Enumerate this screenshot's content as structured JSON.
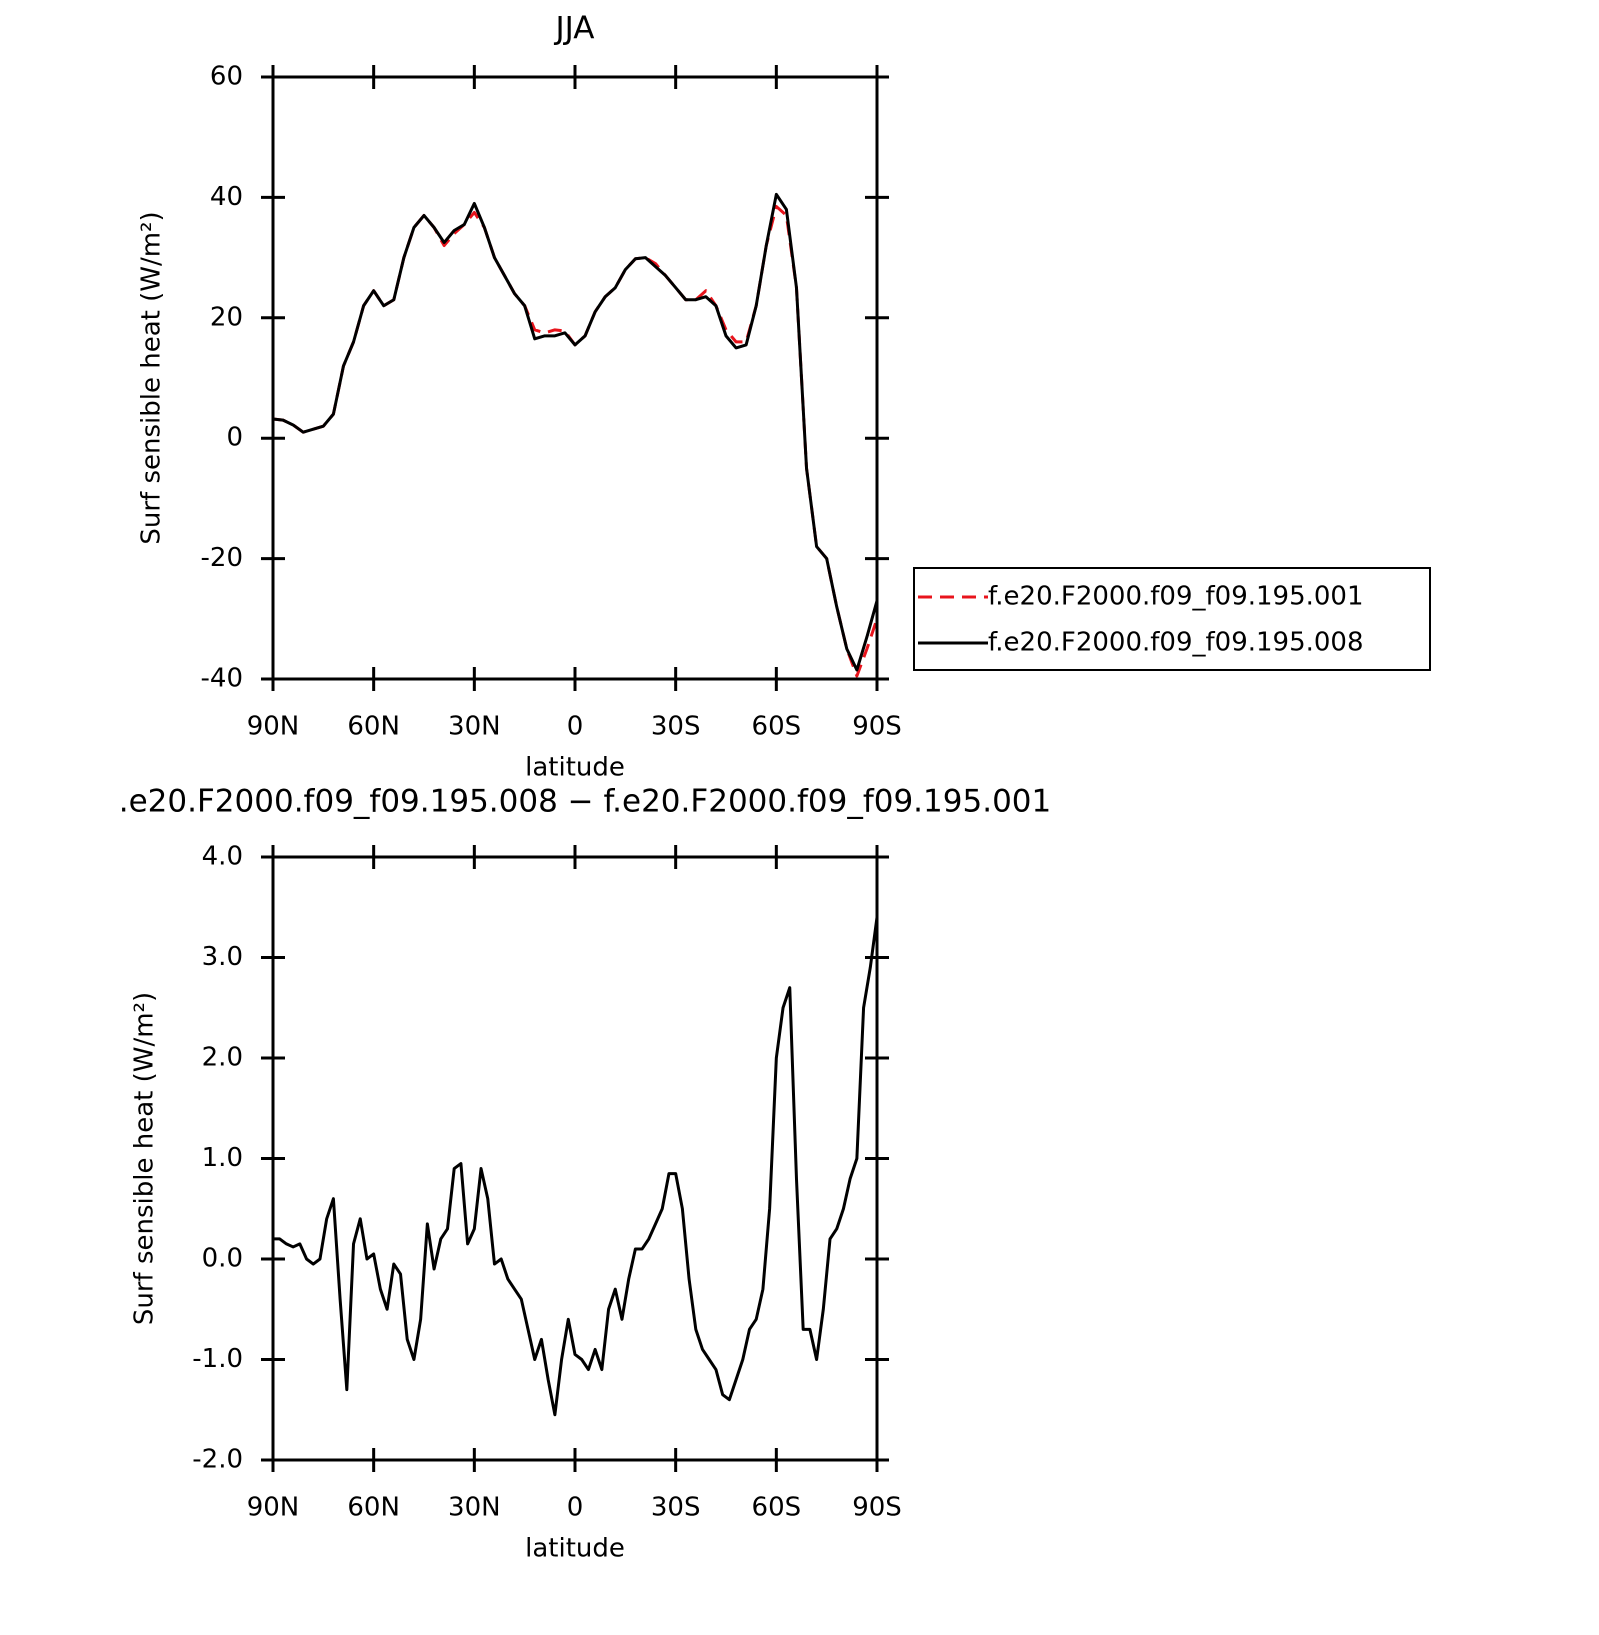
{
  "chart_data": [
    {
      "type": "line",
      "title": "JJA",
      "xlabel": "latitude",
      "ylabel": "Surf sensible heat (W/m²)",
      "x": [
        90,
        87,
        84,
        81,
        78,
        75,
        72,
        69,
        66,
        63,
        60,
        57,
        54,
        51,
        48,
        45,
        42,
        39,
        36,
        33,
        30,
        27,
        24,
        21,
        18,
        15,
        12,
        9,
        6,
        3,
        0,
        -3,
        -6,
        -9,
        -12,
        -15,
        -18,
        -21,
        -24,
        -27,
        -30,
        -33,
        -36,
        -39,
        -42,
        -45,
        -48,
        -51,
        -54,
        -57,
        -60,
        -63,
        -66,
        -69,
        -72,
        -75,
        -78,
        -81,
        -84,
        -87,
        -90
      ],
      "series": [
        {
          "name": "f.e20.F2000.f09_f09.195.001",
          "color": "#e8141c",
          "linestyle": "dashed",
          "values": [
            3.2,
            3.0,
            2.2,
            1.0,
            1.5,
            2.0,
            4,
            12,
            16,
            22,
            24.5,
            22,
            23,
            30,
            35,
            37,
            35,
            32,
            34,
            35.5,
            37.5,
            35,
            30,
            27,
            24,
            22,
            18,
            17.5,
            18,
            17.8,
            15.5,
            17,
            21,
            23.5,
            25,
            28,
            29.8,
            30,
            29,
            27,
            25,
            23,
            23,
            24.5,
            22,
            18,
            16,
            16,
            22,
            32,
            38.5,
            37,
            25,
            -5,
            -18,
            -20,
            -28,
            -35,
            -39.5,
            -35,
            -30
          ]
        },
        {
          "name": "f.e20.F2000.f09_f09.195.008",
          "color": "#000000",
          "linestyle": "solid",
          "values": [
            3.2,
            3.0,
            2.2,
            1.0,
            1.5,
            2.0,
            4,
            12,
            16,
            22,
            24.5,
            22,
            23,
            30,
            35,
            37,
            35,
            32.5,
            34.5,
            35.5,
            39,
            35,
            30,
            27,
            24,
            22,
            16.5,
            17,
            17,
            17.5,
            15.5,
            17,
            21,
            23.5,
            25,
            28,
            29.8,
            30,
            28.5,
            27,
            25,
            23,
            23,
            23.5,
            22,
            17,
            15,
            15.5,
            22,
            32,
            40.5,
            38,
            25,
            -5,
            -18,
            -20,
            -28,
            -35,
            -38.5,
            -33,
            -27
          ]
        }
      ],
      "xlim": [
        90,
        -90
      ],
      "xticks": [
        {
          "value": 90,
          "label": "90N"
        },
        {
          "value": 60,
          "label": "60N"
        },
        {
          "value": 30,
          "label": "30N"
        },
        0,
        {
          "value": -30,
          "label": "30S"
        },
        {
          "value": -60,
          "label": "60S"
        },
        {
          "value": -90,
          "label": "90S"
        }
      ],
      "ylim": [
        -40,
        60
      ],
      "yticks": [
        -40,
        -20,
        0,
        20,
        40,
        60
      ],
      "legend": "right"
    },
    {
      "type": "line",
      "title": ".e20.F2000.f09_f09.195.008 − f.e20.F2000.f09_f09.195.001",
      "xlabel": "latitude",
      "ylabel": "Surf sensible heat (W/m²)",
      "x": [
        90,
        88,
        86,
        84,
        82,
        80,
        78,
        76,
        74,
        72,
        70,
        68,
        66,
        64,
        62,
        60,
        58,
        56,
        54,
        52,
        50,
        48,
        46,
        44,
        42,
        40,
        38,
        36,
        34,
        32,
        30,
        28,
        26,
        24,
        22,
        20,
        18,
        16,
        14,
        12,
        10,
        8,
        6,
        4,
        2,
        0,
        -2,
        -4,
        -6,
        -8,
        -10,
        -12,
        -14,
        -16,
        -18,
        -20,
        -22,
        -24,
        -26,
        -28,
        -30,
        -32,
        -34,
        -36,
        -38,
        -40,
        -42,
        -44,
        -46,
        -48,
        -50,
        -52,
        -54,
        -56,
        -58,
        -60,
        -62,
        -64,
        -66,
        -68,
        -70,
        -72,
        -74,
        -76,
        -78,
        -80,
        -82,
        -84,
        -86,
        -88,
        -90
      ],
      "series": [
        {
          "color": "#000000",
          "linestyle": "solid",
          "values": [
            0.2,
            0.2,
            0.15,
            0.12,
            0.15,
            0.0,
            -0.05,
            0.0,
            0.4,
            0.6,
            -0.4,
            -1.3,
            0.15,
            0.4,
            0.0,
            0.05,
            -0.3,
            -0.5,
            -0.05,
            -0.15,
            -0.8,
            -1.0,
            -0.6,
            0.35,
            -0.1,
            0.2,
            0.3,
            0.9,
            0.95,
            0.15,
            0.3,
            0.9,
            0.6,
            -0.05,
            0.0,
            -0.2,
            -0.3,
            -0.4,
            -0.7,
            -1.0,
            -0.8,
            -1.2,
            -1.55,
            -1.0,
            -0.6,
            -0.95,
            -1.0,
            -1.1,
            -0.9,
            -1.1,
            -0.5,
            -0.3,
            -0.6,
            -0.2,
            0.1,
            0.1,
            0.2,
            0.35,
            0.5,
            0.85,
            0.85,
            0.5,
            -0.2,
            -0.7,
            -0.9,
            -1.0,
            -1.1,
            -1.35,
            -1.4,
            -1.2,
            -1.0,
            -0.7,
            -0.6,
            -0.3,
            0.5,
            2.0,
            2.5,
            2.7,
            0.8,
            -0.7,
            -0.7,
            -1.0,
            -0.5,
            0.2,
            0.3,
            0.5,
            0.8,
            1.0,
            2.5,
            2.9,
            3.4
          ]
        }
      ],
      "xlim": [
        90,
        -90
      ],
      "xticks": [
        {
          "value": 90,
          "label": "90N"
        },
        {
          "value": 60,
          "label": "60N"
        },
        {
          "value": 30,
          "label": "30N"
        },
        0,
        {
          "value": -30,
          "label": "30S"
        },
        {
          "value": -60,
          "label": "60S"
        },
        {
          "value": -90,
          "label": "90S"
        }
      ],
      "ylim": [
        -2,
        4
      ],
      "yticks": [
        {
          "value": -2,
          "label": "-2.0"
        },
        {
          "value": -1,
          "label": "-1.0"
        },
        {
          "value": 0,
          "label": "0.0"
        },
        {
          "value": 1,
          "label": "1.0"
        },
        {
          "value": 2,
          "label": "2.0"
        },
        {
          "value": 3,
          "label": "3.0"
        },
        {
          "value": 4,
          "label": "4.0"
        }
      ]
    }
  ]
}
